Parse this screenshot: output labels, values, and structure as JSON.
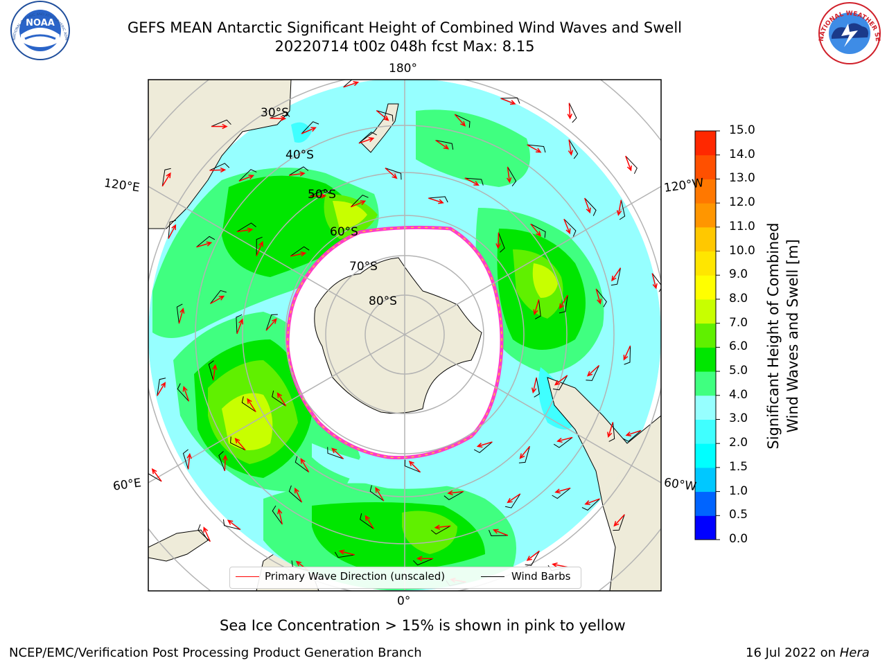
{
  "title": {
    "line1": "GEFS MEAN Antarctic Significant Height of Combined Wind Waves and Swell",
    "line2": "20220714 t00z 048h fcst   Max: 8.15"
  },
  "map": {
    "meridian_labels": [
      "180°",
      "120°E",
      "120°W",
      "60°E",
      "60°W",
      "0°"
    ],
    "parallel_labels": [
      "30°S",
      "40°S",
      "50°S",
      "60°S",
      "70°S",
      "80°S"
    ],
    "colors": {
      "land": "#eeebd9",
      "ice": "#ffffff",
      "grid": "#b3b3b3",
      "wave_arrow": "#ff0000",
      "barb": "#000000",
      "ice_edge": "#ff3cc8"
    }
  },
  "colorbar": {
    "label_line1": "Significant Height of Combined",
    "label_line2": "Wind Waves and Swell [m]",
    "ticks": [
      "0.0",
      "0.5",
      "1.0",
      "1.5",
      "2.0",
      "3.0",
      "4.0",
      "5.0",
      "6.0",
      "7.0",
      "8.0",
      "9.0",
      "10.0",
      "11.0",
      "12.0",
      "13.0",
      "14.0",
      "15.0"
    ],
    "colors": [
      "#0000ff",
      "#0064ff",
      "#00c8ff",
      "#00ffff",
      "#40ffff",
      "#96ffff",
      "#40ff80",
      "#00e600",
      "#60f000",
      "#c8ff00",
      "#ffff00",
      "#ffe600",
      "#ffc800",
      "#ff9600",
      "#ff7800",
      "#ff5000",
      "#ff2800",
      "#ff0000"
    ]
  },
  "legend": {
    "wave": "Primary Wave Direction (unscaled)",
    "barbs": "Wind Barbs"
  },
  "footer": {
    "note": "Sea Ice Concentration > 15% is shown in pink to yellow",
    "left": "NCEP/EMC/Verification Post Processing Product Generation Branch",
    "date": "16 Jul 2022 on ",
    "machine": "Hera"
  },
  "logos": {
    "noaa": "NOAA",
    "noaa_ring": "NATIONAL OCEANIC AND ATMOSPHERIC ADMINISTRATION · U.S. DEPARTMENT OF COMMERCE",
    "nws_ring": "NATIONAL WEATHER SERVICE"
  }
}
